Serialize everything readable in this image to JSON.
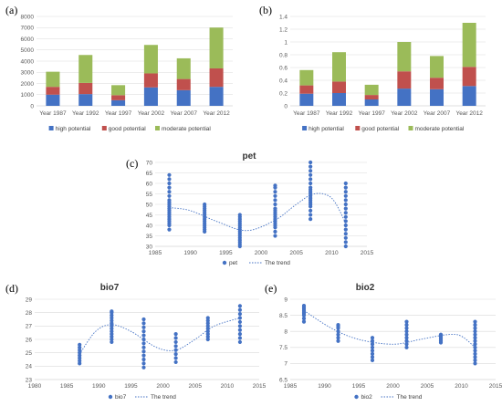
{
  "colors": {
    "high": "#4472C4",
    "good": "#C0504D",
    "moderate": "#9BBB59",
    "scatter": "#4472C4",
    "grid": "#D9D9D9",
    "axis": "#BFBFBF"
  },
  "chart_data": [
    {
      "panel": "(a)",
      "type": "bar",
      "stacked": true,
      "title": "",
      "categories": [
        "Year 1987",
        "Year 1992",
        "Year 1997",
        "Year 2002",
        "Year 2007",
        "Year 2012"
      ],
      "series": [
        {
          "name": "high potential",
          "values": [
            1000,
            1050,
            500,
            1650,
            1400,
            1700
          ]
        },
        {
          "name": "good potential",
          "values": [
            700,
            1000,
            450,
            1250,
            1000,
            1650
          ]
        },
        {
          "name": "moderate potential",
          "values": [
            1350,
            2500,
            900,
            2550,
            1850,
            3650
          ]
        }
      ],
      "ylim": [
        0,
        8000
      ],
      "yticks": [
        "0",
        "1000",
        "2000",
        "3000",
        "4000",
        "5000",
        "6000",
        "7000",
        "8000"
      ],
      "grid": true,
      "legend": "bottom"
    },
    {
      "panel": "(b)",
      "type": "bar",
      "stacked": true,
      "title": "",
      "categories": [
        "Year 1987",
        "Year 1992",
        "Year 1997",
        "Year 2002",
        "Year 2007",
        "Year 2012"
      ],
      "series": [
        {
          "name": "high potential",
          "values": [
            0.19,
            0.2,
            0.1,
            0.27,
            0.26,
            0.31
          ]
        },
        {
          "name": "good potential",
          "values": [
            0.13,
            0.18,
            0.07,
            0.27,
            0.18,
            0.3
          ]
        },
        {
          "name": "moderate potential",
          "values": [
            0.24,
            0.46,
            0.16,
            0.46,
            0.34,
            0.69
          ]
        }
      ],
      "ylim": [
        0,
        1.4
      ],
      "yticks": [
        "0",
        "0.2",
        "0.4",
        "0.6",
        "0.8",
        "1",
        "1.2",
        "1.4"
      ],
      "grid": true,
      "legend": "bottom"
    },
    {
      "panel": "(c)",
      "type": "scatter",
      "title": "pet",
      "xlim": [
        1985,
        2015
      ],
      "xticks": [
        "1985",
        "1990",
        "1995",
        "2000",
        "2005",
        "2010",
        "2015"
      ],
      "ylim": [
        30,
        70
      ],
      "yticks": [
        "30",
        "35",
        "40",
        "45",
        "50",
        "55",
        "60",
        "65",
        "70"
      ],
      "points": [
        {
          "x": 1987,
          "y": [
            38,
            40,
            41,
            42,
            43,
            44,
            45,
            46,
            47,
            48,
            49,
            50,
            51,
            52,
            54,
            56,
            58,
            60,
            62,
            64
          ]
        },
        {
          "x": 1992,
          "y": [
            37,
            38,
            39,
            40,
            41,
            42,
            43,
            44,
            45,
            46,
            47,
            48,
            49,
            50
          ]
        },
        {
          "x": 1997,
          "y": [
            30,
            31,
            32,
            33,
            34,
            35,
            36,
            37,
            38,
            39,
            40,
            41,
            42,
            43,
            44,
            45
          ]
        },
        {
          "x": 2002,
          "y": [
            35,
            37,
            39,
            40,
            41,
            42,
            43,
            44,
            45,
            46,
            47,
            48,
            50,
            52,
            54,
            56,
            58,
            59
          ]
        },
        {
          "x": 2007,
          "y": [
            43,
            45,
            47,
            49,
            50,
            51,
            52,
            53,
            54,
            55,
            56,
            57,
            58,
            60,
            62,
            64,
            66,
            68,
            70
          ]
        },
        {
          "x": 2012,
          "y": [
            30,
            32,
            34,
            36,
            38,
            40,
            42,
            44,
            46,
            48,
            50,
            52,
            54,
            56,
            58,
            60
          ]
        }
      ],
      "trend": [
        {
          "x": 1987,
          "y": 48.5
        },
        {
          "x": 1990,
          "y": 47
        },
        {
          "x": 1994,
          "y": 41.5
        },
        {
          "x": 1998,
          "y": 37.5
        },
        {
          "x": 2002,
          "y": 42.5
        },
        {
          "x": 2005,
          "y": 50
        },
        {
          "x": 2007.5,
          "y": 55
        },
        {
          "x": 2010,
          "y": 53
        },
        {
          "x": 2012,
          "y": 41
        }
      ],
      "legend": [
        "pet",
        "The trend"
      ]
    },
    {
      "panel": "(d)",
      "type": "scatter",
      "title": "bio7",
      "xlim": [
        1980,
        2015
      ],
      "xticks": [
        "1980",
        "1985",
        "1990",
        "1995",
        "2000",
        "2005",
        "2010",
        "2015"
      ],
      "ylim": [
        23,
        29
      ],
      "yticks": [
        "23",
        "24",
        "25",
        "26",
        "27",
        "28",
        "29"
      ],
      "points": [
        {
          "x": 1987,
          "y": [
            24.2,
            24.4,
            24.6,
            24.8,
            25.0,
            25.2,
            25.4,
            25.6
          ]
        },
        {
          "x": 1992,
          "y": [
            25.8,
            26.0,
            26.2,
            26.4,
            26.6,
            26.8,
            27.0,
            27.2,
            27.4,
            27.6,
            27.8,
            28.0,
            28.1
          ]
        },
        {
          "x": 1997,
          "y": [
            23.9,
            24.2,
            24.5,
            24.8,
            25.1,
            25.4,
            25.7,
            26.0,
            26.3,
            26.6,
            26.9,
            27.2,
            27.5
          ]
        },
        {
          "x": 2002,
          "y": [
            24.3,
            24.6,
            24.9,
            25.2,
            25.5,
            25.8,
            26.1,
            26.4
          ]
        },
        {
          "x": 2007,
          "y": [
            26.0,
            26.2,
            26.4,
            26.6,
            26.8,
            27.0,
            27.2,
            27.4,
            27.6
          ]
        },
        {
          "x": 2012,
          "y": [
            25.8,
            26.1,
            26.4,
            26.7,
            27.0,
            27.3,
            27.6,
            27.9,
            28.2,
            28.5
          ]
        }
      ],
      "trend": [
        {
          "x": 1987,
          "y": 24.9
        },
        {
          "x": 1989.5,
          "y": 26.6
        },
        {
          "x": 1992,
          "y": 27.1
        },
        {
          "x": 1995,
          "y": 26.6
        },
        {
          "x": 1999,
          "y": 25.4
        },
        {
          "x": 2002,
          "y": 25.2
        },
        {
          "x": 2005,
          "y": 26.0
        },
        {
          "x": 2008,
          "y": 27.0
        },
        {
          "x": 2012,
          "y": 27.6
        }
      ],
      "legend": [
        "bio7",
        "The trend"
      ]
    },
    {
      "panel": "(e)",
      "type": "scatter",
      "title": "bio2",
      "xlim": [
        1985,
        2015
      ],
      "xticks": [
        "1985",
        "1990",
        "1995",
        "2000",
        "2005",
        "2010",
        "2015"
      ],
      "ylim": [
        6.5,
        9
      ],
      "yticks": [
        "6.5",
        "7",
        "7.5",
        "8",
        "8.5",
        "9"
      ],
      "points": [
        {
          "x": 1987,
          "y": [
            8.3,
            8.4,
            8.5,
            8.55,
            8.6,
            8.65,
            8.7,
            8.75,
            8.8
          ]
        },
        {
          "x": 1992,
          "y": [
            7.7,
            7.8,
            7.9,
            8.0,
            8.1,
            8.15,
            8.2
          ]
        },
        {
          "x": 1997,
          "y": [
            7.1,
            7.2,
            7.3,
            7.4,
            7.5,
            7.6,
            7.7,
            7.8
          ]
        },
        {
          "x": 2002,
          "y": [
            7.5,
            7.6,
            7.7,
            7.8,
            7.9,
            8.0,
            8.1,
            8.2,
            8.3
          ]
        },
        {
          "x": 2007,
          "y": [
            7.65,
            7.7,
            7.75,
            7.8,
            7.85,
            7.9
          ]
        },
        {
          "x": 2012,
          "y": [
            7.0,
            7.1,
            7.2,
            7.3,
            7.4,
            7.5,
            7.6,
            7.7,
            7.8,
            7.9,
            8.0,
            8.1,
            8.2,
            8.3
          ]
        }
      ],
      "trend": [
        {
          "x": 1987,
          "y": 8.65
        },
        {
          "x": 1991,
          "y": 8.1
        },
        {
          "x": 1995,
          "y": 7.75
        },
        {
          "x": 2000,
          "y": 7.6
        },
        {
          "x": 2004,
          "y": 7.75
        },
        {
          "x": 2008,
          "y": 7.9
        },
        {
          "x": 2010,
          "y": 7.85
        },
        {
          "x": 2012,
          "y": 7.5
        }
      ],
      "legend": [
        "bio2",
        "The trend"
      ]
    }
  ]
}
